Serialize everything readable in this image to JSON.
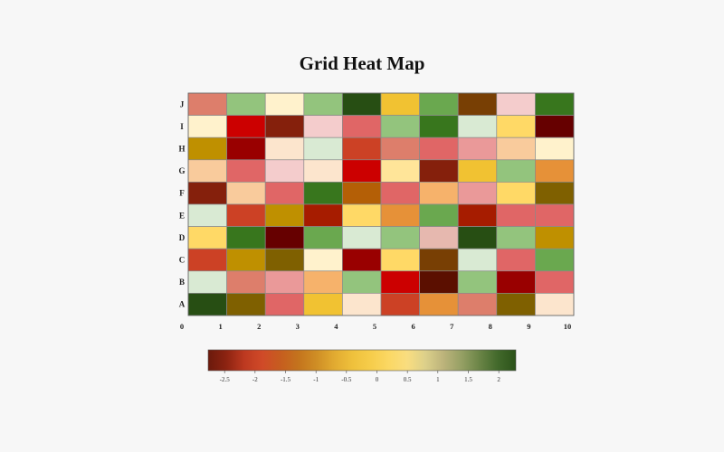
{
  "page": {
    "background": "#f7f7f7"
  },
  "chart_data": {
    "type": "heatmap",
    "title": "Grid Heat Map",
    "x_ticks": [
      "0",
      "1",
      "2",
      "3",
      "4",
      "5",
      "6",
      "7",
      "8",
      "9",
      "10"
    ],
    "rows": [
      {
        "label": "J",
        "colors": [
          "#dd7e6b",
          "#93c47d",
          "#fff2cc",
          "#93c47d",
          "#274e13",
          "#f1c232",
          "#6aa84f",
          "#783f04",
          "#f4cccc",
          "#38761d"
        ]
      },
      {
        "label": "I",
        "colors": [
          "#fff2cc",
          "#cc0000",
          "#85200c",
          "#f4cccc",
          "#e06666",
          "#93c47d",
          "#38761d",
          "#d9ead3",
          "#ffd966",
          "#660000"
        ]
      },
      {
        "label": "H",
        "colors": [
          "#bf9000",
          "#990000",
          "#fce5cd",
          "#d9ead3",
          "#cc4125",
          "#dd7e6b",
          "#e06666",
          "#ea9999",
          "#f9cb9c",
          "#fff2cc"
        ]
      },
      {
        "label": "G",
        "colors": [
          "#f9cb9c",
          "#e06666",
          "#f4cccc",
          "#fce5cd",
          "#cc0000",
          "#ffe599",
          "#85200c",
          "#f1c232",
          "#93c47d",
          "#e69138"
        ]
      },
      {
        "label": "F",
        "colors": [
          "#85200c",
          "#f9cb9c",
          "#e06666",
          "#38761d",
          "#b45f06",
          "#e06666",
          "#f6b26b",
          "#ea9999",
          "#ffd966",
          "#7f6000"
        ]
      },
      {
        "label": "E",
        "colors": [
          "#d9ead3",
          "#cc4125",
          "#bf9000",
          "#a61c00",
          "#ffd966",
          "#e69138",
          "#6aa84f",
          "#a61c00",
          "#e06666",
          "#e06666"
        ]
      },
      {
        "label": "D",
        "colors": [
          "#ffd966",
          "#38761d",
          "#660000",
          "#6aa84f",
          "#d9ead3",
          "#93c47d",
          "#e6b8af",
          "#274e13",
          "#93c47d",
          "#bf9000"
        ]
      },
      {
        "label": "C",
        "colors": [
          "#cc4125",
          "#bf9000",
          "#7f6000",
          "#fff2cc",
          "#990000",
          "#ffd966",
          "#783f04",
          "#d9ead3",
          "#e06666",
          "#6aa84f"
        ]
      },
      {
        "label": "B",
        "colors": [
          "#d9ead3",
          "#dd7e6b",
          "#ea9999",
          "#f6b26b",
          "#93c47d",
          "#cc0000",
          "#5b0f00",
          "#93c47d",
          "#990000",
          "#e06666"
        ]
      },
      {
        "label": "A",
        "colors": [
          "#274e13",
          "#7f6000",
          "#e06666",
          "#f1c232",
          "#fce5cd",
          "#cc4125",
          "#e69138",
          "#dd7e6b",
          "#7f6000",
          "#fce5cd"
        ]
      }
    ],
    "colorbar": {
      "range": [
        -2.77,
        2.28
      ],
      "ticks": [
        "-2.5",
        "-2",
        "-1.5",
        "-1",
        "-0.5",
        "0",
        "0.5",
        "1",
        "1.5",
        "2"
      ],
      "colormap": [
        "#6b1a0c",
        "#8c2311",
        "#bd3920",
        "#d04a28",
        "#c65d1f",
        "#c4741d",
        "#cf8e25",
        "#e2ab31",
        "#efc13c",
        "#f6cd4b",
        "#fbd864",
        "#f9dd80",
        "#dcd08a",
        "#bcb37b",
        "#95a064",
        "#6a8446",
        "#42692b",
        "#2b5219"
      ]
    }
  }
}
